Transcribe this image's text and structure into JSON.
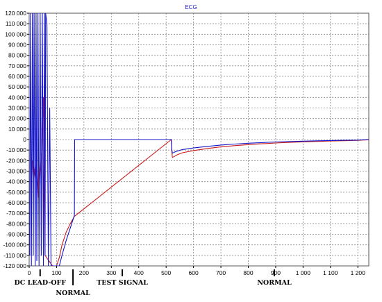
{
  "chart_data": {
    "type": "line",
    "title": "ECG",
    "xlabel": "",
    "ylabel": "",
    "xlim": [
      0,
      1240
    ],
    "ylim": [
      -120000,
      120000
    ],
    "x_ticks": [
      0,
      100,
      200,
      300,
      400,
      500,
      600,
      700,
      800,
      900,
      1000,
      1100,
      1200
    ],
    "x_tick_labels": [
      "0",
      "100",
      "200",
      "300",
      "400",
      "500",
      "600",
      "700",
      "800",
      "900",
      "1 000",
      "1 100",
      "1 200"
    ],
    "y_ticks": [
      120000,
      110000,
      100000,
      90000,
      80000,
      70000,
      60000,
      50000,
      40000,
      30000,
      20000,
      10000,
      0,
      -10000,
      -20000,
      -30000,
      -40000,
      -50000,
      -60000,
      -70000,
      -80000,
      -90000,
      -100000,
      -110000,
      -120000
    ],
    "y_tick_labels": [
      "120 000",
      "110 000",
      "100 000",
      "90 000",
      "80 000",
      "70 000",
      "60 000",
      "50 000",
      "40 000",
      "30 000",
      "20 000",
      "10 000",
      "0",
      "-10 000",
      "-20 000",
      "-30 000",
      "-40 000",
      "-50 000",
      "-60 000",
      "-70 000",
      "-80 000",
      "-90 000",
      "-100 000",
      "-110 000",
      "-120 000"
    ],
    "grid": true,
    "legend": "none",
    "colors": {
      "blue": "#1515c8",
      "red": "#c81a1a",
      "grid": "#8a8a8a"
    },
    "series": [
      {
        "color": "#1515c8",
        "x": [
          2,
          5,
          8,
          12,
          15,
          18,
          22,
          25,
          28,
          32,
          36,
          40,
          44,
          48,
          52,
          56,
          58,
          60,
          65,
          70,
          75,
          80,
          95,
          110,
          120,
          135,
          150,
          165,
          166,
          170,
          200,
          300,
          400,
          519,
          520,
          523,
          530,
          540,
          560,
          600,
          650,
          700,
          750,
          800,
          850,
          900,
          950,
          1000,
          1050,
          1100,
          1150,
          1200,
          1240
        ],
        "y": [
          -110000,
          120000,
          -120000,
          120000,
          -110000,
          120000,
          -120000,
          120000,
          -115000,
          120000,
          -120000,
          120000,
          -110000,
          120000,
          -120000,
          120000,
          -110000,
          120000,
          110000,
          -120000,
          30000,
          -120000,
          -120000,
          -120000,
          -110000,
          -96000,
          -84000,
          -72000,
          0,
          0,
          0,
          0,
          0,
          0,
          -8000,
          -13000,
          -12000,
          -11000,
          -9500,
          -8000,
          -6500,
          -5200,
          -4300,
          -3500,
          -2900,
          -2300,
          -1900,
          -1500,
          -1200,
          -900,
          -700,
          -500,
          0
        ]
      },
      {
        "color": "#c81a1a",
        "x": [
          12,
          14,
          16,
          22,
          28,
          34,
          40,
          46,
          52,
          58,
          85,
          100,
          110,
          120,
          135,
          150,
          165,
          519,
          520,
          523,
          530,
          540,
          560,
          600,
          650,
          700,
          750,
          800,
          850,
          900,
          950,
          1000,
          1050,
          1100,
          1150,
          1200,
          1240
        ],
        "y": [
          -20000,
          -35000,
          -25000,
          -40000,
          -20000,
          -55000,
          -30000,
          -10000,
          40000,
          -110000,
          -120000,
          -120000,
          -112000,
          -100000,
          -88000,
          -80000,
          -73000,
          0,
          -9000,
          -17000,
          -16000,
          -14500,
          -12500,
          -10500,
          -8500,
          -7000,
          -5800,
          -4800,
          -4000,
          -3300,
          -2700,
          -2200,
          -1800,
          -1400,
          -1100,
          -800,
          -200
        ]
      }
    ],
    "annotations": [
      {
        "text": "DC LEAD-OFF",
        "x": 40,
        "row": "upper"
      },
      {
        "text": "NORMAL",
        "x": 160,
        "row": "lower"
      },
      {
        "text": "TEST SIGNAL",
        "x": 340,
        "row": "upper"
      },
      {
        "text": "NORMAL",
        "x": 895,
        "row": "upper"
      }
    ]
  }
}
